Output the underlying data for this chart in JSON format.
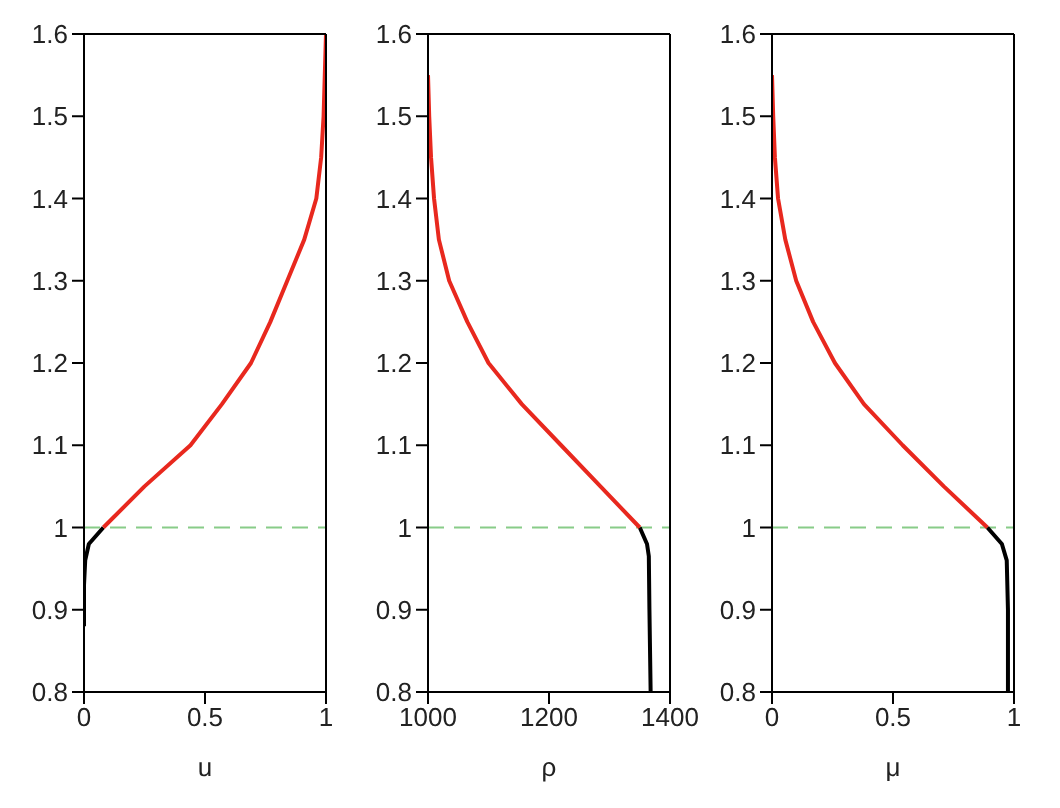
{
  "chart_data": [
    {
      "type": "line",
      "xlabel": "u",
      "xlim": [
        0,
        1
      ],
      "xticks": [
        0,
        0.5,
        1
      ],
      "ylim": [
        0.8,
        1.6
      ],
      "yticks": [
        0.8,
        0.9,
        1,
        1.1,
        1.2,
        1.3,
        1.4,
        1.5,
        1.6
      ],
      "grid": false,
      "legend": false,
      "marker": "none",
      "series": [
        {
          "color": "#000000",
          "x": [
            0,
            0,
            0.005,
            0.02,
            0.08
          ],
          "values": [
            0.88,
            0.93,
            0.96,
            0.98,
            1.0
          ]
        },
        {
          "color": "#e8281e",
          "x": [
            0.08,
            0.25,
            0.44,
            0.57,
            0.69,
            0.77,
            0.84,
            0.91,
            0.96,
            0.98,
            0.99,
            1.0
          ],
          "values": [
            1.0,
            1.05,
            1.1,
            1.15,
            1.2,
            1.25,
            1.3,
            1.35,
            1.4,
            1.45,
            1.5,
            1.6
          ]
        }
      ],
      "ref_lines": [
        {
          "axis": "y",
          "value": 1,
          "color": "#88cc88",
          "line_style": "dashed"
        }
      ]
    },
    {
      "type": "line",
      "xlabel": "ρ",
      "xlim": [
        1000,
        1400
      ],
      "xticks": [
        1000,
        1200,
        1400
      ],
      "ylim": [
        0.8,
        1.6
      ],
      "yticks": [
        0.8,
        0.9,
        1,
        1.1,
        1.2,
        1.3,
        1.4,
        1.5,
        1.6
      ],
      "grid": false,
      "legend": false,
      "marker": "none",
      "series": [
        {
          "color": "#000000",
          "x": [
            1368,
            1366,
            1365,
            1362,
            1350
          ],
          "values": [
            0.8,
            0.9,
            0.965,
            0.98,
            1.0
          ]
        },
        {
          "color": "#e8281e",
          "x": [
            1350,
            1285,
            1220,
            1155,
            1100,
            1065,
            1035,
            1018,
            1010,
            1005,
            1002,
            1000
          ],
          "values": [
            1.0,
            1.05,
            1.1,
            1.15,
            1.2,
            1.25,
            1.3,
            1.35,
            1.4,
            1.45,
            1.5,
            1.55
          ]
        }
      ],
      "ref_lines": [
        {
          "axis": "y",
          "value": 1,
          "color": "#88cc88",
          "line_style": "dashed"
        }
      ]
    },
    {
      "type": "line",
      "xlabel": "μ",
      "xlim": [
        0,
        1
      ],
      "xticks": [
        0,
        0.5,
        1
      ],
      "ylim": [
        0.8,
        1.6
      ],
      "yticks": [
        0.8,
        0.9,
        1,
        1.1,
        1.2,
        1.3,
        1.4,
        1.5,
        1.6
      ],
      "grid": false,
      "legend": false,
      "marker": "none",
      "series": [
        {
          "color": "#000000",
          "x": [
            0.975,
            0.975,
            0.97,
            0.95,
            0.89
          ],
          "values": [
            0.8,
            0.9,
            0.96,
            0.98,
            1.0
          ]
        },
        {
          "color": "#e8281e",
          "x": [
            0.89,
            0.71,
            0.54,
            0.38,
            0.26,
            0.17,
            0.1,
            0.055,
            0.025,
            0.012,
            0.005,
            0
          ],
          "values": [
            1.0,
            1.05,
            1.1,
            1.15,
            1.2,
            1.25,
            1.3,
            1.35,
            1.4,
            1.45,
            1.5,
            1.55
          ]
        }
      ],
      "ref_lines": [
        {
          "axis": "y",
          "value": 1,
          "color": "#88cc88",
          "line_style": "dashed"
        }
      ]
    }
  ]
}
